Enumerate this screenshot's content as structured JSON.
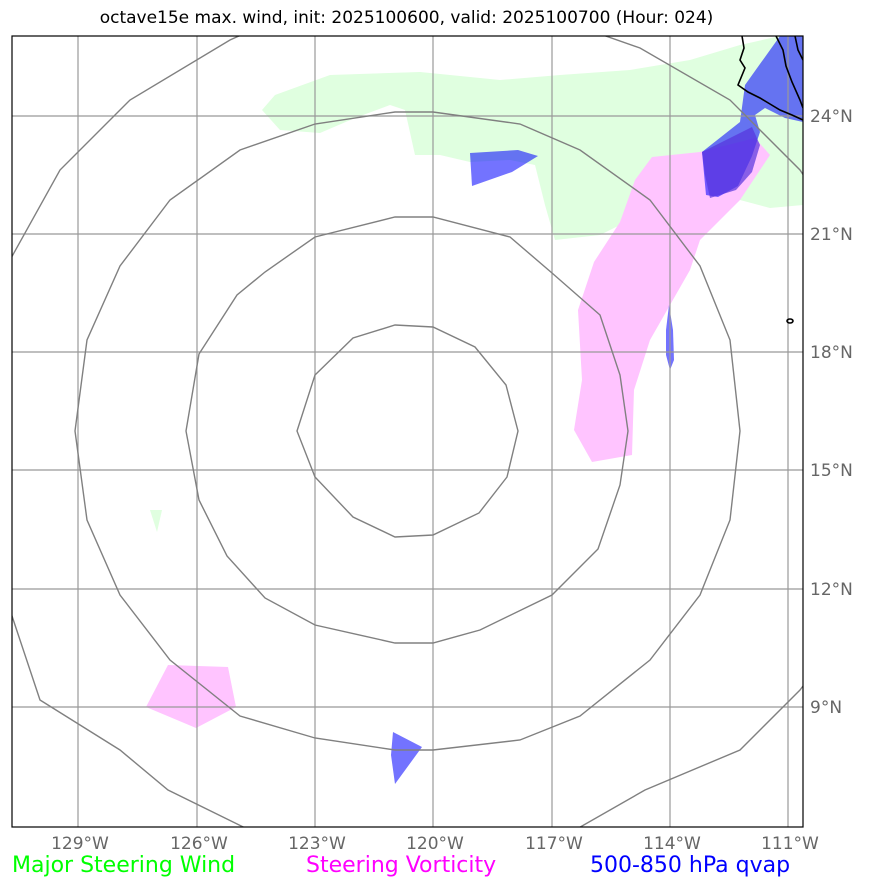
{
  "title": "octave15e max. wind, init: 2025100600, valid: 2025100700 (Hour: 024)",
  "lat_labels": [
    "24°N",
    "21°N",
    "18°N",
    "15°N",
    "12°N",
    "9°N"
  ],
  "lon_labels": [
    "129°W",
    "126°W",
    "123°W",
    "120°W",
    "117°W",
    "114°W",
    "111°W"
  ],
  "legend": {
    "steering_wind": "Major Steering Wind",
    "steering_vorticity": "Steering Vorticity",
    "qvap": "500-850 hPa qvap"
  },
  "colors": {
    "steering_wind": "#00ff00",
    "steering_vorticity": "#ff00ff",
    "qvap": "#0000ff",
    "gridline": "#999999",
    "range_ring": "#808080",
    "coastline": "#000000"
  },
  "range_ring_count": 4
}
